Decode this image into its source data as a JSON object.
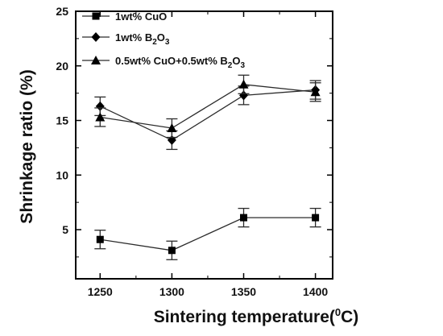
{
  "chart_data": {
    "type": "line",
    "title": "",
    "xlabel": "Sintering temperature(",
    "xlabel_sup": "0",
    "xlabel_tail": "C)",
    "ylabel": "Shrinkage ratio (%)",
    "x": [
      1250,
      1300,
      1350,
      1400
    ],
    "x_tick_labels": [
      "1250",
      "1300",
      "1350",
      "1400"
    ],
    "xlim": [
      1233,
      1412
    ],
    "ylim": [
      0.5,
      25
    ],
    "y_ticks": [
      5,
      10,
      15,
      20,
      25
    ],
    "y_tick_labels": [
      "5",
      "10",
      "15",
      "20",
      "25"
    ],
    "grid": false,
    "legend_position": "top-left",
    "colors": {
      "line": "#2b2b2b",
      "marker": "#000000",
      "axis": "#000000"
    },
    "series": [
      {
        "name": "1wt% CuO",
        "legend_parts": [
          {
            "t": "1wt% CuO",
            "sub": false
          }
        ],
        "marker": "square",
        "values": [
          4.1,
          3.1,
          6.1,
          6.1
        ],
        "errors": [
          0.85,
          0.85,
          0.85,
          0.85
        ]
      },
      {
        "name": "1wt% B2O3",
        "legend_parts": [
          {
            "t": "1wt% B",
            "sub": false
          },
          {
            "t": "2",
            "sub": true
          },
          {
            "t": "O",
            "sub": false
          },
          {
            "t": "3",
            "sub": true
          }
        ],
        "marker": "diamond",
        "values": [
          16.3,
          13.2,
          17.3,
          17.8
        ],
        "errors": [
          0.85,
          0.85,
          0.85,
          0.85
        ]
      },
      {
        "name": "0.5wt% CuO+0.5wt% B2O3",
        "legend_parts": [
          {
            "t": "0.5wt% CuO+0.5wt% B",
            "sub": false
          },
          {
            "t": "2",
            "sub": true
          },
          {
            "t": "O",
            "sub": false
          },
          {
            "t": "3",
            "sub": true
          }
        ],
        "marker": "triangle",
        "values": [
          15.3,
          14.3,
          18.3,
          17.6
        ],
        "errors": [
          0.85,
          0.85,
          0.85,
          0.85
        ]
      }
    ]
  }
}
